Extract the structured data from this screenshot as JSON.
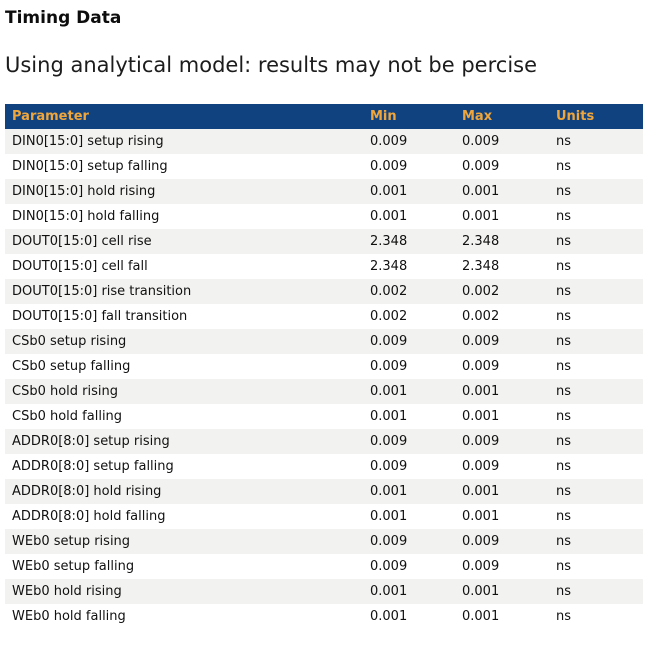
{
  "page": {
    "title": "Timing Data",
    "subtitle": "Using analytical model: results may not be percise"
  },
  "table": {
    "columns": [
      "Parameter",
      "Min",
      "Max",
      "Units"
    ],
    "rows": [
      {
        "parameter": "DIN0[15:0] setup rising",
        "min": "0.009",
        "max": "0.009",
        "units": "ns"
      },
      {
        "parameter": "DIN0[15:0] setup falling",
        "min": "0.009",
        "max": "0.009",
        "units": "ns"
      },
      {
        "parameter": "DIN0[15:0] hold rising",
        "min": "0.001",
        "max": "0.001",
        "units": "ns"
      },
      {
        "parameter": "DIN0[15:0] hold falling",
        "min": "0.001",
        "max": "0.001",
        "units": "ns"
      },
      {
        "parameter": "DOUT0[15:0] cell rise",
        "min": "2.348",
        "max": "2.348",
        "units": "ns"
      },
      {
        "parameter": "DOUT0[15:0] cell fall",
        "min": "2.348",
        "max": "2.348",
        "units": "ns"
      },
      {
        "parameter": "DOUT0[15:0] rise transition",
        "min": "0.002",
        "max": "0.002",
        "units": "ns"
      },
      {
        "parameter": "DOUT0[15:0] fall transition",
        "min": "0.002",
        "max": "0.002",
        "units": "ns"
      },
      {
        "parameter": "CSb0 setup rising",
        "min": "0.009",
        "max": "0.009",
        "units": "ns"
      },
      {
        "parameter": "CSb0 setup falling",
        "min": "0.009",
        "max": "0.009",
        "units": "ns"
      },
      {
        "parameter": "CSb0 hold rising",
        "min": "0.001",
        "max": "0.001",
        "units": "ns"
      },
      {
        "parameter": "CSb0 hold falling",
        "min": "0.001",
        "max": "0.001",
        "units": "ns"
      },
      {
        "parameter": "ADDR0[8:0] setup rising",
        "min": "0.009",
        "max": "0.009",
        "units": "ns"
      },
      {
        "parameter": "ADDR0[8:0] setup falling",
        "min": "0.009",
        "max": "0.009",
        "units": "ns"
      },
      {
        "parameter": "ADDR0[8:0] hold rising",
        "min": "0.001",
        "max": "0.001",
        "units": "ns"
      },
      {
        "parameter": "ADDR0[8:0] hold falling",
        "min": "0.001",
        "max": "0.001",
        "units": "ns"
      },
      {
        "parameter": "WEb0 setup rising",
        "min": "0.009",
        "max": "0.009",
        "units": "ns"
      },
      {
        "parameter": "WEb0 setup falling",
        "min": "0.009",
        "max": "0.009",
        "units": "ns"
      },
      {
        "parameter": "WEb0 hold rising",
        "min": "0.001",
        "max": "0.001",
        "units": "ns"
      },
      {
        "parameter": "WEb0 hold falling",
        "min": "0.001",
        "max": "0.001",
        "units": "ns"
      }
    ]
  },
  "colors": {
    "header_bg": "#114280",
    "header_text": "#f0a63a",
    "row_alt_bg": "#f2f2f0"
  }
}
